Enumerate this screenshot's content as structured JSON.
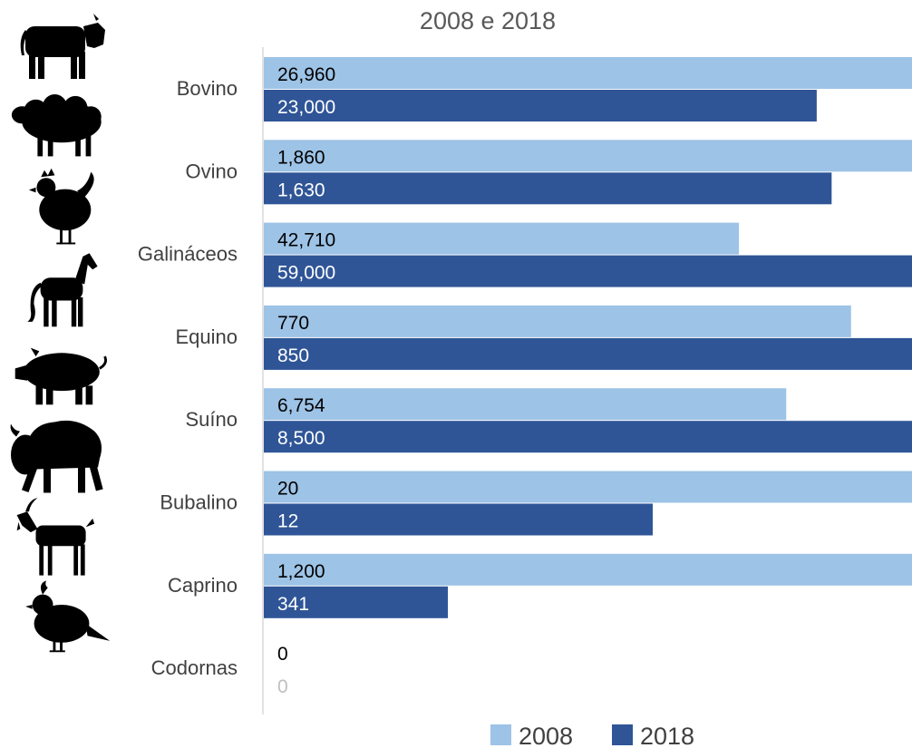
{
  "chart_data": {
    "type": "bar",
    "orientation": "horizontal",
    "title": "2008 e 2018",
    "categories": [
      "Bovino",
      "Ovino",
      "Galináceos",
      "Equino",
      "Suíno",
      "Bubalino",
      "Caprino",
      "Codornas"
    ],
    "series": [
      {
        "name": "2008",
        "values": [
          26960,
          1860,
          42710,
          770,
          6754,
          20,
          1200,
          0
        ],
        "labels": [
          "26,960",
          "1,860",
          "42,710",
          "770",
          "6,754",
          "20",
          "1,200",
          "0"
        ],
        "display_fraction": [
          1.0,
          1.0,
          0.733,
          0.906,
          0.806,
          1.0,
          1.0,
          0.0
        ],
        "color": "#9dc3e6",
        "label_color": "#000000"
      },
      {
        "name": "2018",
        "values": [
          23000,
          1630,
          59000,
          850,
          8500,
          12,
          341,
          0
        ],
        "labels": [
          "23,000",
          "1,630",
          "59,000",
          "850",
          "8,500",
          "12",
          "341",
          "0"
        ],
        "display_fraction": [
          0.853,
          0.876,
          1.0,
          1.0,
          1.0,
          0.6,
          0.284,
          0.0
        ],
        "color": "#2f5597",
        "label_color": "#ffffff"
      }
    ],
    "icons": [
      "cow-icon",
      "sheep-icon",
      "chicken-icon",
      "horse-icon",
      "pig-icon",
      "bison-icon",
      "goat-icon",
      "quail-icon"
    ],
    "legend_position": "bottom",
    "grid": false,
    "axis_line_color": "#d9d9d9"
  }
}
